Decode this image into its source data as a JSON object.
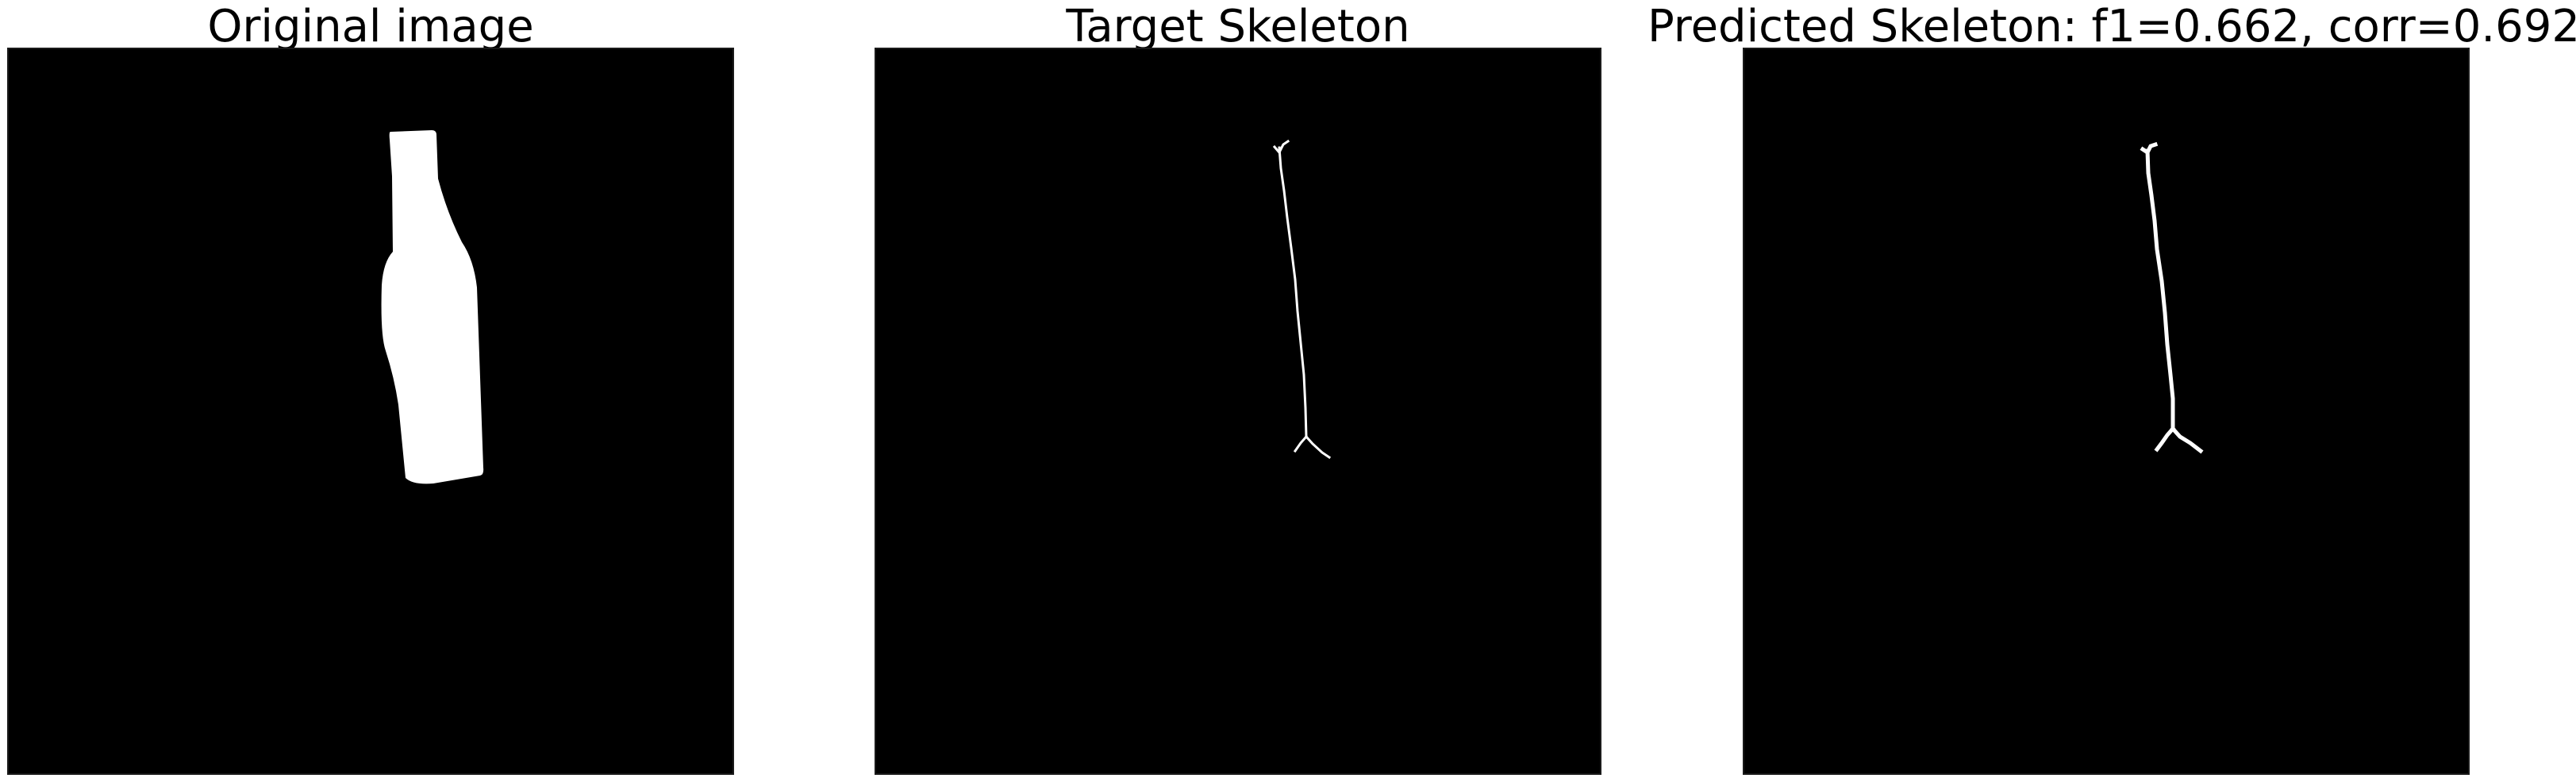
{
  "figure": {
    "panels": [
      {
        "id": "original",
        "title": "Original image"
      },
      {
        "id": "target",
        "title": "Target Skeleton"
      },
      {
        "id": "predicted",
        "title": "Predicted Skeleton: f1=0.662, corr=0.692"
      }
    ]
  },
  "colors": {
    "background": "#000000",
    "foreground": "#ffffff",
    "title": "#000000"
  }
}
